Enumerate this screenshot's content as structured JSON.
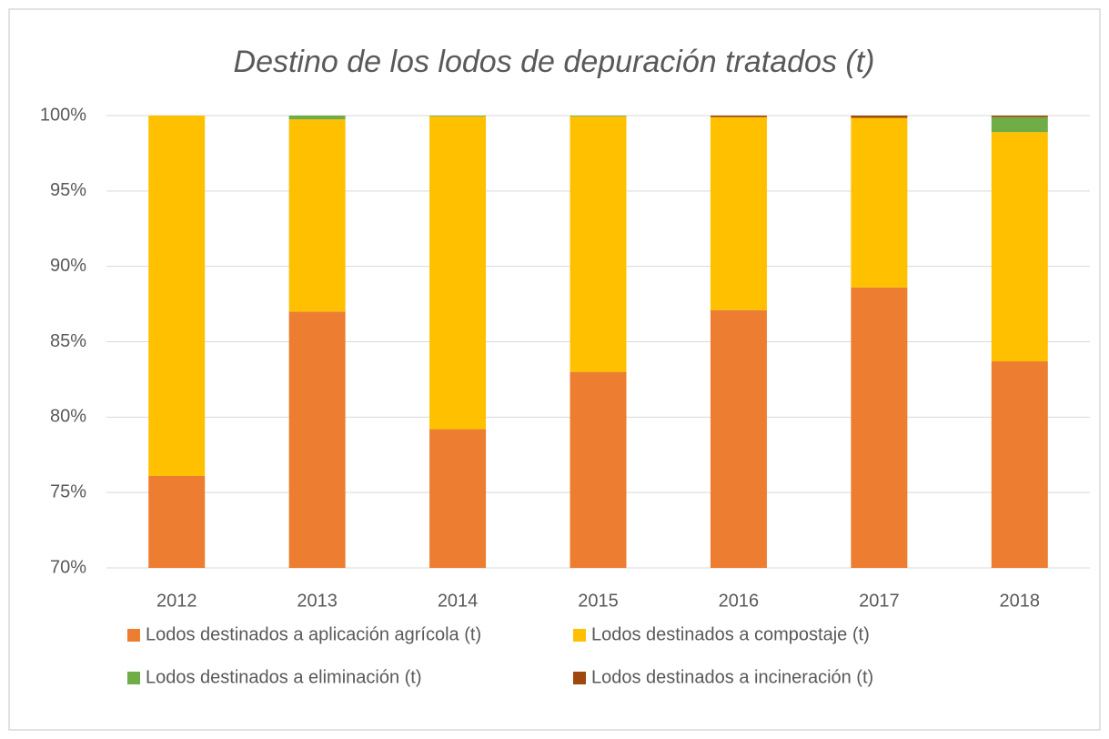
{
  "chart_data": {
    "type": "stacked_bar_percent",
    "title": "Destino de los lodos de depuración tratados (t)",
    "categories": [
      "2012",
      "2013",
      "2014",
      "2015",
      "2016",
      "2017",
      "2018"
    ],
    "series": [
      {
        "name": "Lodos destinados a aplicación agrícola (t)",
        "color": "#ed7d31",
        "values": [
          76.1,
          87.0,
          79.2,
          83.0,
          87.1,
          88.6,
          83.7
        ]
      },
      {
        "name": "Lodos destinados a compostaje (t)",
        "color": "#ffc000",
        "values": [
          23.9,
          12.75,
          20.75,
          16.95,
          12.8,
          11.25,
          15.2
        ]
      },
      {
        "name": "Lodos destinados a eliminación (t)",
        "color": "#70ad47",
        "values": [
          0,
          0.25,
          0.05,
          0.05,
          0,
          0,
          1.0
        ]
      },
      {
        "name": "Lodos destinados a incineración (t)",
        "color": "#9e480e",
        "values": [
          0,
          0,
          0,
          0,
          0.1,
          0.15,
          0.1
        ]
      }
    ],
    "ylim": [
      70,
      100
    ],
    "yticks": [
      {
        "value": 70,
        "label": "70%"
      },
      {
        "value": 75,
        "label": "75%"
      },
      {
        "value": 80,
        "label": "80%"
      },
      {
        "value": 85,
        "label": "85%"
      },
      {
        "value": 90,
        "label": "90%"
      },
      {
        "value": 95,
        "label": "95%"
      },
      {
        "value": 100,
        "label": "100%"
      }
    ],
    "grid": true
  }
}
